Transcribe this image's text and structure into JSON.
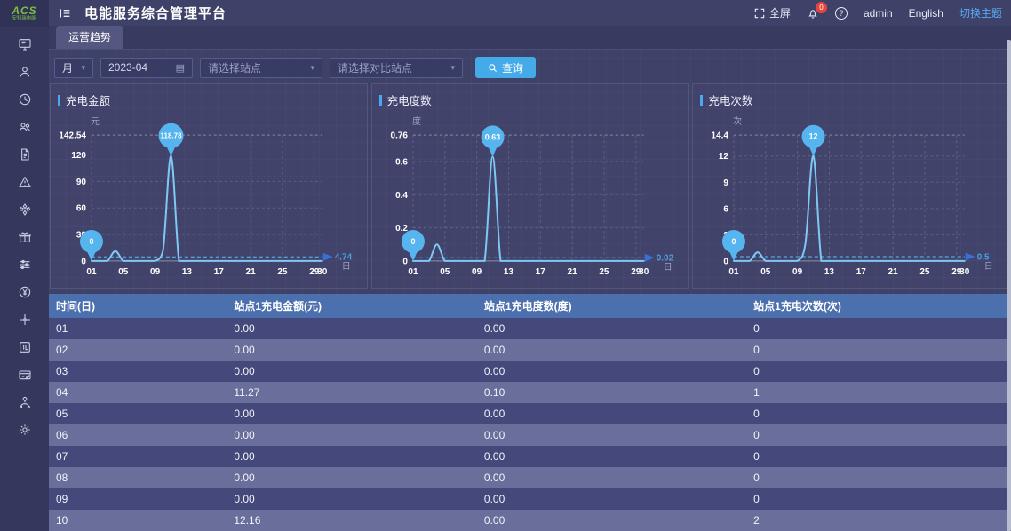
{
  "app": {
    "logo_text": "ACS",
    "logo_sub": "安科瑞电能",
    "title": "电能服务综合管理平台"
  },
  "topbar": {
    "fullscreen_label": "全屏",
    "notification_count": "0",
    "username": "admin",
    "language_label": "English",
    "theme_toggle_label": "切换主题"
  },
  "tabs": [
    {
      "label": "运营趋势",
      "active": true
    }
  ],
  "filters": {
    "period_select": {
      "value": "月"
    },
    "date_input": {
      "value": "2023-04"
    },
    "station_select": {
      "placeholder": "请选择站点"
    },
    "compare_select": {
      "placeholder": "请选择对比站点"
    },
    "search_button": {
      "label": "查询"
    }
  },
  "sidebar": {
    "items": [
      {
        "icon": "monitor-icon"
      },
      {
        "icon": "user-icon"
      },
      {
        "icon": "clock-icon"
      },
      {
        "icon": "users-icon"
      },
      {
        "icon": "document-icon"
      },
      {
        "icon": "warning-icon"
      },
      {
        "icon": "charging-pile-icon"
      },
      {
        "icon": "gift-icon"
      },
      {
        "icon": "sliders-icon"
      },
      {
        "icon": "currency-icon"
      },
      {
        "icon": "crosshair-icon"
      },
      {
        "icon": "meter-icon"
      },
      {
        "icon": "card-icon"
      },
      {
        "icon": "org-icon"
      },
      {
        "icon": "gear-icon"
      }
    ]
  },
  "chart_data": [
    {
      "type": "line",
      "title": "充电金额",
      "unit": "元",
      "x_unit": "日",
      "x": [
        1,
        2,
        3,
        4,
        5,
        6,
        7,
        8,
        9,
        10,
        11,
        12,
        13,
        14,
        15,
        16,
        17,
        18,
        19,
        20,
        21,
        22,
        23,
        24,
        25,
        26,
        27,
        28,
        29,
        30
      ],
      "values": [
        0,
        0,
        0,
        11.27,
        0,
        0,
        0,
        0,
        0,
        12.16,
        118.78,
        0,
        0,
        0,
        0,
        0,
        0,
        0,
        0,
        0,
        0,
        0,
        0,
        0,
        0,
        0,
        0,
        0,
        0,
        0
      ],
      "y_ticks": [
        0,
        30,
        60,
        90,
        120
      ],
      "y_max": 142.54,
      "y_max_label": "142.54",
      "x_tick_days": [
        1,
        5,
        9,
        13,
        17,
        21,
        25,
        29,
        30
      ],
      "x_tick_labels": [
        "01",
        "05",
        "09",
        "13",
        "17",
        "21",
        "25",
        "29",
        "30"
      ],
      "avg": 4.74,
      "avg_label": "4.74",
      "peak_day": 11,
      "peak_label": "118.78",
      "start_label": "0"
    },
    {
      "type": "line",
      "title": "充电度数",
      "unit": "度",
      "x_unit": "日",
      "x": [
        1,
        2,
        3,
        4,
        5,
        6,
        7,
        8,
        9,
        10,
        11,
        12,
        13,
        14,
        15,
        16,
        17,
        18,
        19,
        20,
        21,
        22,
        23,
        24,
        25,
        26,
        27,
        28,
        29,
        30
      ],
      "values": [
        0,
        0,
        0,
        0.1,
        0,
        0,
        0,
        0,
        0,
        0,
        0.63,
        0,
        0,
        0,
        0,
        0,
        0,
        0,
        0,
        0,
        0,
        0,
        0,
        0,
        0,
        0,
        0,
        0,
        0,
        0
      ],
      "y_ticks": [
        0,
        0.2,
        0.4,
        0.6
      ],
      "y_max": 0.76,
      "y_max_label": "0.76",
      "x_tick_days": [
        1,
        5,
        9,
        13,
        17,
        21,
        25,
        29,
        30
      ],
      "x_tick_labels": [
        "01",
        "05",
        "09",
        "13",
        "17",
        "21",
        "25",
        "29",
        "30"
      ],
      "avg": 0.02,
      "avg_label": "0.02",
      "peak_day": 11,
      "peak_label": "0.63",
      "start_label": "0"
    },
    {
      "type": "line",
      "title": "充电次数",
      "unit": "次",
      "x_unit": "日",
      "x": [
        1,
        2,
        3,
        4,
        5,
        6,
        7,
        8,
        9,
        10,
        11,
        12,
        13,
        14,
        15,
        16,
        17,
        18,
        19,
        20,
        21,
        22,
        23,
        24,
        25,
        26,
        27,
        28,
        29,
        30
      ],
      "values": [
        0,
        0,
        0,
        1,
        0,
        0,
        0,
        0,
        0,
        2,
        12,
        0,
        0,
        0,
        0,
        0,
        0,
        0,
        0,
        0,
        0,
        0,
        0,
        0,
        0,
        0,
        0,
        0,
        0,
        0
      ],
      "y_ticks": [
        0,
        3,
        6,
        9,
        12
      ],
      "y_max": 14.4,
      "y_max_label": "14.4",
      "x_tick_days": [
        1,
        5,
        9,
        13,
        17,
        21,
        25,
        29,
        30
      ],
      "x_tick_labels": [
        "01",
        "05",
        "09",
        "13",
        "17",
        "21",
        "25",
        "29",
        "30"
      ],
      "avg": 0.5,
      "avg_label": "0.5",
      "peak_day": 11,
      "peak_label": "12",
      "start_label": "0"
    }
  ],
  "table": {
    "headers": [
      "时间(日)",
      "站点1充电金额(元)",
      "站点1充电度数(度)",
      "站点1充电次数(次)"
    ],
    "rows": [
      [
        "01",
        "0.00",
        "0.00",
        "0"
      ],
      [
        "02",
        "0.00",
        "0.00",
        "0"
      ],
      [
        "03",
        "0.00",
        "0.00",
        "0"
      ],
      [
        "04",
        "11.27",
        "0.10",
        "1"
      ],
      [
        "05",
        "0.00",
        "0.00",
        "0"
      ],
      [
        "06",
        "0.00",
        "0.00",
        "0"
      ],
      [
        "07",
        "0.00",
        "0.00",
        "0"
      ],
      [
        "08",
        "0.00",
        "0.00",
        "0"
      ],
      [
        "09",
        "0.00",
        "0.00",
        "0"
      ],
      [
        "10",
        "12.16",
        "0.00",
        "2"
      ]
    ]
  },
  "colors": {
    "accent_blue": "#45aae8",
    "chart_line": "#7fc8f6",
    "marker": "#56b5ee",
    "avg_label": "#4f9ce2",
    "table_header": "#4c70ae",
    "row_dark": "#45487b",
    "row_light": "#6a6e9a",
    "badge_red": "#e5453d",
    "logo_green": "#79c043"
  }
}
